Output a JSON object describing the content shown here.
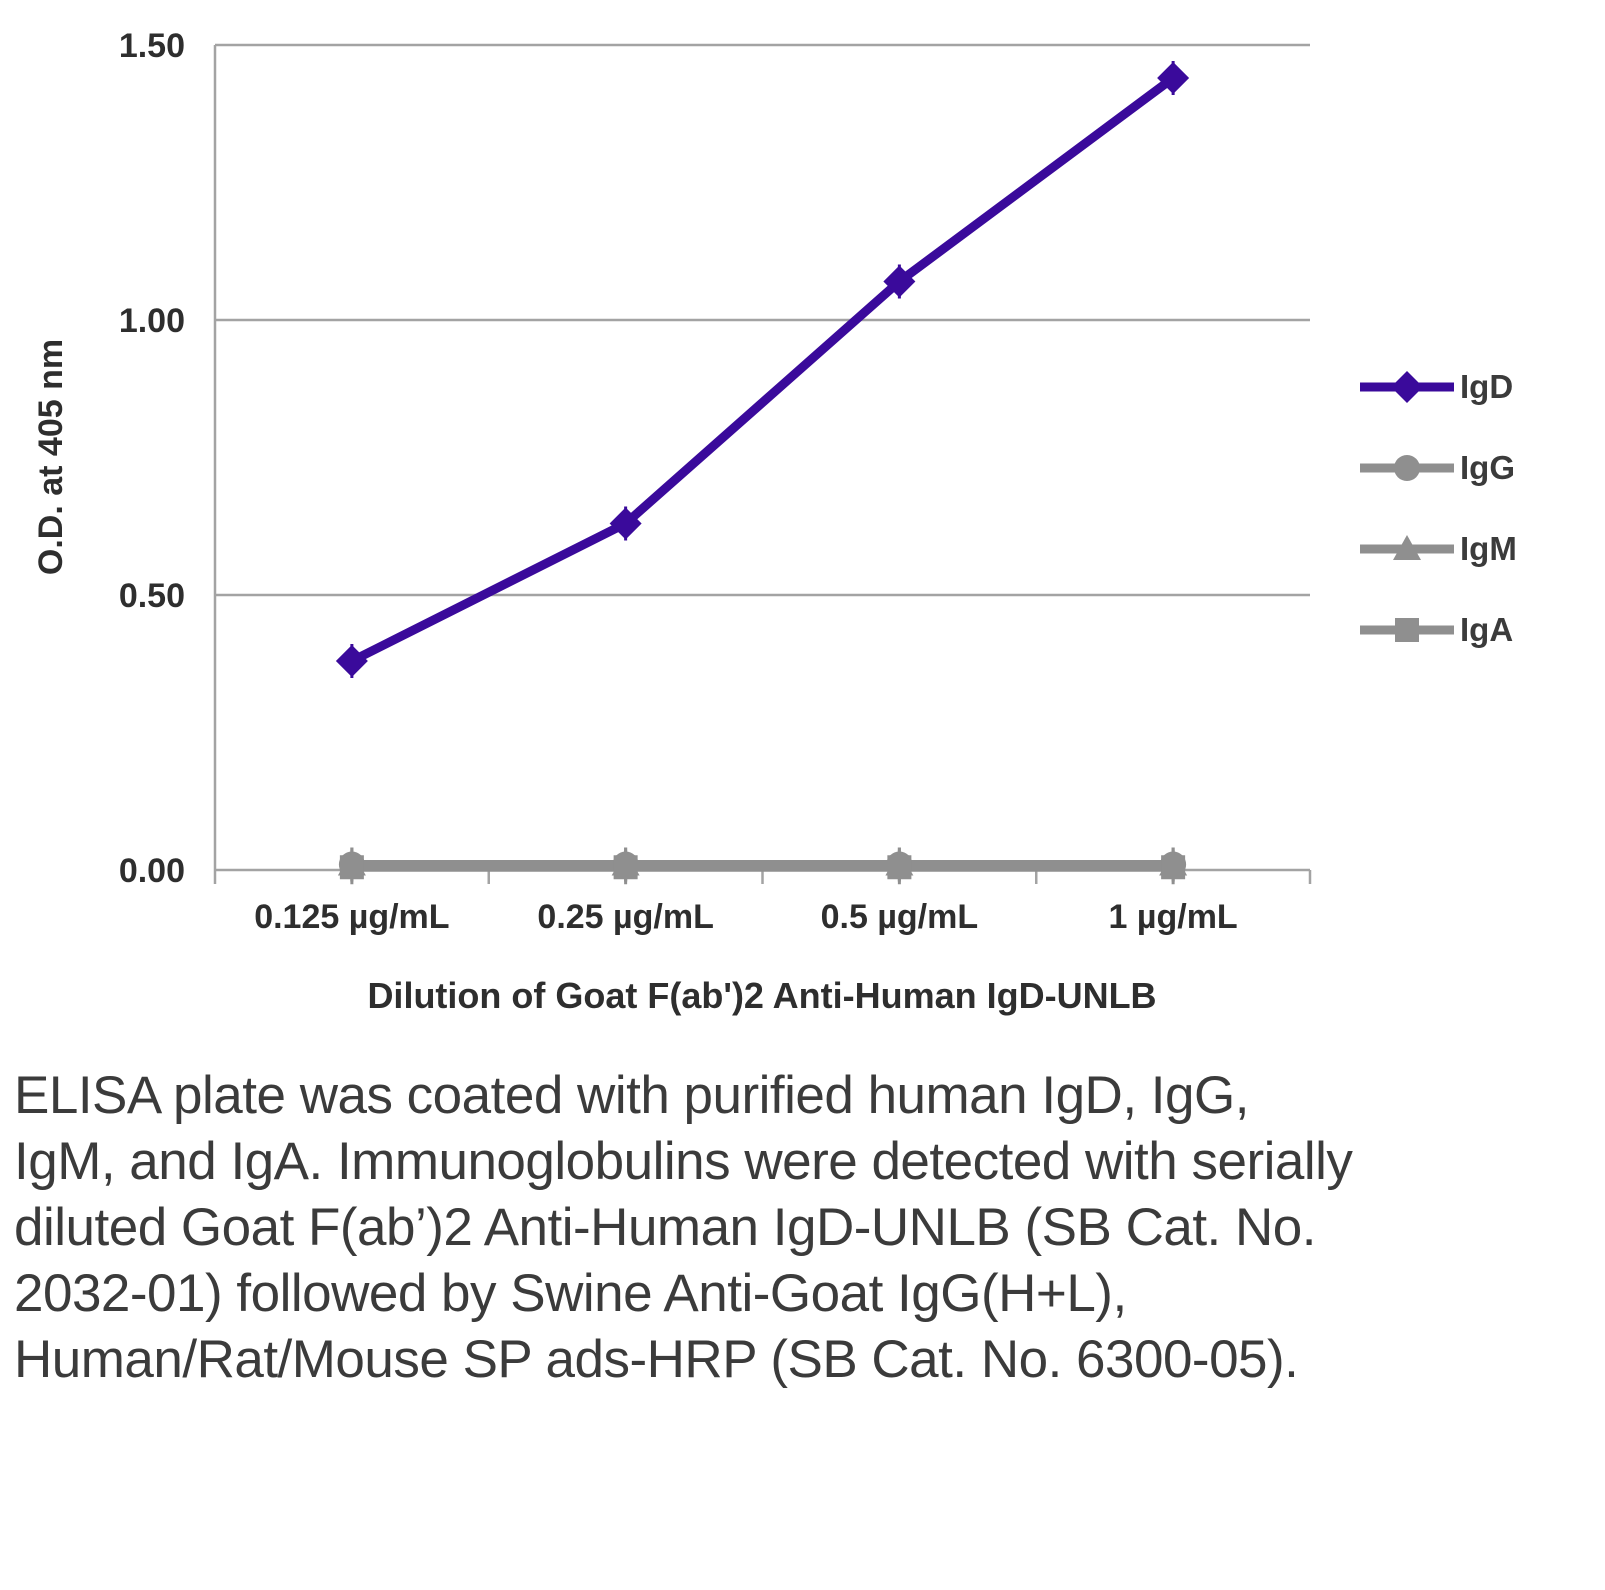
{
  "chart_data": {
    "type": "line",
    "title": "",
    "xlabel": "Dilution of Goat F(ab')2 Anti-Human IgD-UNLB",
    "ylabel": "O.D. at 405 nm",
    "categories": [
      "0.125 µg/mL",
      "0.25 µg/mL",
      "0.5 µg/mL",
      "1 µg/mL"
    ],
    "ylim": [
      0,
      1.5
    ],
    "yticks": [
      0.0,
      0.5,
      1.0,
      1.5
    ],
    "ytick_labels": [
      "0.00",
      "0.50",
      "1.00",
      "1.50"
    ],
    "grid": true,
    "legend_position": "right",
    "series": [
      {
        "name": "IgD",
        "marker": "diamond",
        "color": "#3a0a9b",
        "values": [
          0.38,
          0.63,
          1.07,
          1.44
        ]
      },
      {
        "name": "IgG",
        "marker": "circle",
        "color": "#8f8f8f",
        "values": [
          0.01,
          0.01,
          0.01,
          0.01
        ]
      },
      {
        "name": "IgM",
        "marker": "triangle",
        "color": "#8f8f8f",
        "values": [
          0.01,
          0.01,
          0.01,
          0.01
        ]
      },
      {
        "name": "IgA",
        "marker": "square",
        "color": "#8f8f8f",
        "values": [
          0.005,
          0.005,
          0.005,
          0.005
        ]
      }
    ]
  },
  "colors": {
    "axis": "#a3a3a3",
    "tick_text": "#2e2e2e"
  },
  "caption": "ELISA plate was coated with purified human IgD, IgG, IgM, and IgA.  Immunoglobulins were detected with serially diluted Goat F(ab’)2 Anti-Human IgD-UNLB (SB Cat. No. 2032-01) followed by Swine Anti-Goat IgG(H+L), Human/Rat/Mouse SP ads-HRP (SB Cat. No. 6300-05)."
}
